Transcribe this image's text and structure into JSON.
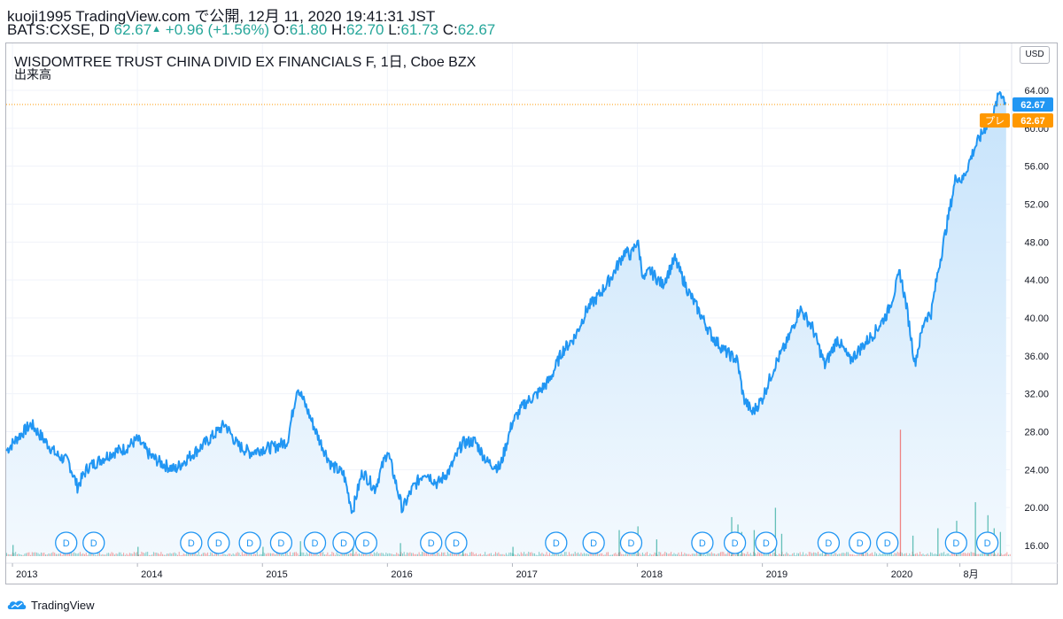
{
  "header": {
    "line1": "kuoji1995 TradingView.com で公開, 12月 11, 2020 19:41:31 JST",
    "symbol_prefix": "BATS:CXSE, D",
    "price": "62.67",
    "change": "+0.96 (+1.56%)",
    "o_label": "O:",
    "o_value": "61.80",
    "h_label": "H:",
    "h_value": "62.70",
    "l_label": "L:",
    "l_value": "61.73",
    "c_label": "C:",
    "c_value": "62.67"
  },
  "chart_title": "WISDOMTREE TRUST CHINA DIVID EX FINANCIALS F, 1日, Cboe BZX",
  "volume_label": "出来高",
  "currency_button": "USD",
  "price_tag": "62.67",
  "pre_label": "プレ",
  "pre_tag": "62.67",
  "dividend_marker": "D",
  "brand": "TradingView",
  "colors": {
    "line": "#2196f3",
    "area_top": "#c6e3fb",
    "area_bottom": "#f3f9fe",
    "price_tag": "#2196f3",
    "pre_tag": "#ff9800",
    "vol_up": "#26a69a",
    "vol_down": "#ef5350"
  },
  "chart_data": {
    "type": "area",
    "title": "WISDOMTREE TRUST CHINA DIVID EX FINANCIALS F, 1日, Cboe BZX",
    "ylim": [
      15,
      65
    ],
    "y_ticks": [
      "16.00",
      "20.00",
      "24.00",
      "28.00",
      "32.00",
      "36.00",
      "40.00",
      "44.00",
      "48.00",
      "52.00",
      "56.00",
      "60.00",
      "64.00"
    ],
    "x_ticks": [
      {
        "label": "2013",
        "t": 2013.0
      },
      {
        "label": "2014",
        "t": 2014.0
      },
      {
        "label": "2015",
        "t": 2015.0
      },
      {
        "label": "2016",
        "t": 2016.0
      },
      {
        "label": "2017",
        "t": 2017.0
      },
      {
        "label": "2018",
        "t": 2018.0
      },
      {
        "label": "2019",
        "t": 2019.0
      },
      {
        "label": "2020",
        "t": 2020.0
      },
      {
        "label": "8月",
        "t": 2020.58
      }
    ],
    "x": [
      2012.95,
      2013.05,
      2013.15,
      2013.25,
      2013.35,
      2013.45,
      2013.52,
      2013.6,
      2013.7,
      2013.8,
      2013.9,
      2014.0,
      2014.1,
      2014.2,
      2014.3,
      2014.4,
      2014.5,
      2014.6,
      2014.7,
      2014.8,
      2014.9,
      2015.0,
      2015.1,
      2015.2,
      2015.28,
      2015.35,
      2015.45,
      2015.55,
      2015.65,
      2015.72,
      2015.8,
      2015.9,
      2016.0,
      2016.05,
      2016.12,
      2016.2,
      2016.3,
      2016.4,
      2016.5,
      2016.6,
      2016.7,
      2016.8,
      2016.9,
      2017.0,
      2017.1,
      2017.2,
      2017.3,
      2017.4,
      2017.5,
      2017.6,
      2017.7,
      2017.8,
      2017.9,
      2017.95,
      2018.0,
      2018.05,
      2018.1,
      2018.2,
      2018.3,
      2018.4,
      2018.5,
      2018.6,
      2018.7,
      2018.8,
      2018.85,
      2018.92,
      2019.0,
      2019.1,
      2019.2,
      2019.3,
      2019.4,
      2019.5,
      2019.6,
      2019.7,
      2019.8,
      2019.9,
      2020.0,
      2020.05,
      2020.1,
      2020.15,
      2020.22,
      2020.3,
      2020.35,
      2020.4,
      2020.5,
      2020.55,
      2020.6,
      2020.7,
      2020.8,
      2020.85,
      2020.9,
      2020.95
    ],
    "y": [
      26.0,
      27.5,
      28.8,
      27.2,
      25.6,
      24.8,
      22.2,
      24.2,
      25.0,
      25.8,
      26.2,
      27.2,
      25.5,
      24.6,
      24.0,
      25.2,
      26.3,
      27.5,
      28.8,
      26.6,
      25.8,
      26.2,
      26.4,
      27.0,
      32.8,
      30.6,
      27.3,
      24.5,
      23.5,
      19.6,
      23.8,
      22.0,
      26.0,
      23.5,
      19.8,
      22.0,
      23.8,
      22.5,
      24.0,
      26.8,
      27.0,
      24.8,
      24.2,
      29.0,
      31.0,
      32.0,
      33.5,
      36.5,
      38.0,
      41.0,
      42.5,
      44.5,
      47.0,
      46.6,
      48.2,
      44.0,
      45.0,
      43.5,
      46.2,
      43.0,
      40.5,
      38.0,
      36.5,
      35.5,
      31.5,
      30.0,
      31.5,
      35.0,
      37.5,
      41.0,
      39.0,
      35.0,
      37.8,
      35.5,
      37.0,
      38.5,
      40.5,
      42.5,
      44.8,
      41.5,
      35.2,
      40.0,
      40.5,
      44.5,
      51.5,
      55.0,
      54.5,
      58.0,
      60.5,
      61.5,
      64.0,
      62.67
    ],
    "dividend_dates": [
      2013.43,
      2013.65,
      2014.43,
      2014.65,
      2014.9,
      2015.15,
      2015.42,
      2015.65,
      2015.83,
      2016.35,
      2016.55,
      2017.35,
      2017.65,
      2017.95,
      2018.52,
      2018.78,
      2019.03,
      2019.53,
      2019.78,
      2020.0,
      2020.55,
      2020.8
    ],
    "volume": [
      {
        "t": 2013.0,
        "v": 0.6
      },
      {
        "t": 2014.0,
        "v": 0.5
      },
      {
        "t": 2015.0,
        "v": 0.5
      },
      {
        "t": 2015.3,
        "v": 0.8
      },
      {
        "t": 2015.72,
        "v": 0.9
      },
      {
        "t": 2016.1,
        "v": 0.7
      },
      {
        "t": 2016.6,
        "v": 0.6
      },
      {
        "t": 2017.0,
        "v": 0.5
      },
      {
        "t": 2017.85,
        "v": 1.4
      },
      {
        "t": 2018.0,
        "v": 1.6
      },
      {
        "t": 2018.15,
        "v": 0.9
      },
      {
        "t": 2018.5,
        "v": 1.0
      },
      {
        "t": 2018.75,
        "v": 2.1
      },
      {
        "t": 2018.8,
        "v": 1.7
      },
      {
        "t": 2018.83,
        "v": 1.3
      },
      {
        "t": 2018.93,
        "v": 1.4
      },
      {
        "t": 2019.1,
        "v": 2.6
      },
      {
        "t": 2019.15,
        "v": 1.2
      },
      {
        "t": 2019.5,
        "v": 0.9
      },
      {
        "t": 2019.8,
        "v": 1.0
      },
      {
        "t": 2020.1,
        "v": 6.8
      },
      {
        "t": 2020.2,
        "v": 1.1
      },
      {
        "t": 2020.4,
        "v": 1.5
      },
      {
        "t": 2020.55,
        "v": 1.9
      },
      {
        "t": 2020.7,
        "v": 2.9
      },
      {
        "t": 2020.8,
        "v": 2.2
      },
      {
        "t": 2020.85,
        "v": 1.5
      },
      {
        "t": 2020.9,
        "v": 1.3
      }
    ]
  }
}
